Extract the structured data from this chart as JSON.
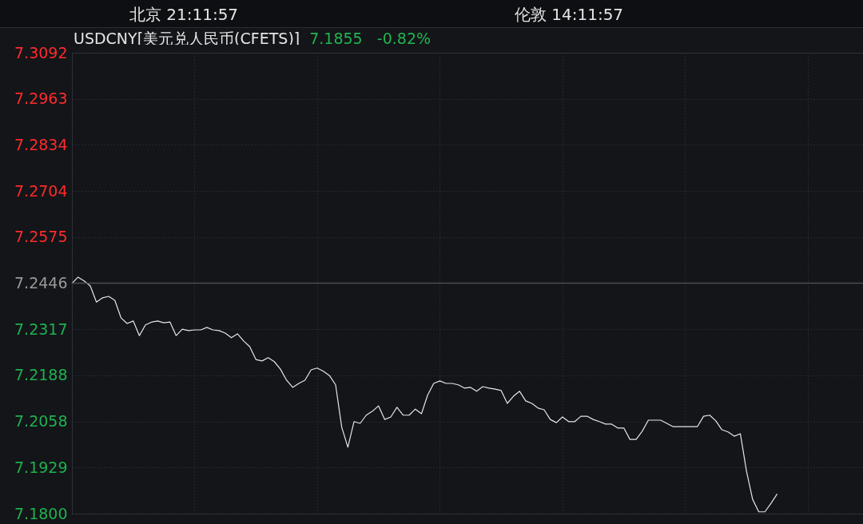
{
  "chart_data": {
    "type": "line",
    "title": "USDCNY[美元兑人民币(CFETS)]",
    "subtitle": "7.1855   -0.82%",
    "annotations": [
      "北京 21:11:57",
      "伦敦 14:11:57"
    ],
    "categories": [
      null,
      null,
      null,
      null,
      null,
      null,
      null,
      null,
      null,
      null,
      null,
      null,
      null,
      null,
      null,
      null,
      null,
      null,
      null,
      null,
      null,
      null,
      null,
      null,
      null,
      null,
      null,
      null,
      null,
      null,
      null,
      null,
      null,
      null,
      null,
      null,
      null,
      null,
      null,
      null,
      null,
      null,
      null,
      null,
      null,
      null,
      null,
      null,
      null,
      null,
      null,
      null,
      null,
      null,
      null,
      null,
      null,
      null,
      null,
      null,
      null,
      null,
      null,
      null,
      null,
      null,
      null,
      null,
      null,
      null,
      null,
      null,
      null,
      null,
      null,
      null,
      null,
      null,
      null,
      null,
      null,
      null,
      null,
      null,
      null,
      null,
      null,
      null,
      null,
      null,
      null,
      null,
      null,
      null,
      null,
      null,
      null,
      null,
      null,
      null,
      null,
      null,
      null,
      null,
      null,
      null,
      null,
      null,
      null,
      null,
      null,
      null,
      null,
      null,
      null,
      null,
      null,
      null,
      null,
      null,
      null,
      null,
      null,
      null,
      null,
      null,
      null,
      null,
      null,
      null
    ],
    "series": [
      {
        "color": "#e6e6e6",
        "values": [
          7.2445,
          7.2463,
          7.2452,
          7.2438,
          7.2393,
          7.2405,
          7.2409,
          7.2398,
          7.2349,
          7.2333,
          7.234,
          7.2299,
          7.2329,
          7.2337,
          7.234,
          7.2335,
          7.2337,
          7.2299,
          7.2317,
          7.2313,
          7.2315,
          7.2315,
          7.2322,
          7.2315,
          7.2313,
          7.2306,
          7.2293,
          7.2304,
          7.2284,
          7.2268,
          7.2232,
          7.2228,
          7.2237,
          7.2226,
          7.2205,
          7.2174,
          7.2154,
          7.2165,
          7.2174,
          7.2203,
          7.2208,
          7.2199,
          7.2187,
          7.2161,
          7.2042,
          7.1986,
          7.2058,
          7.2053,
          7.2076,
          7.2087,
          7.2102,
          7.2064,
          7.2071,
          7.2098,
          7.2076,
          7.2076,
          7.2093,
          7.208,
          7.2132,
          7.2165,
          7.2172,
          7.2165,
          7.2165,
          7.2161,
          7.2152,
          7.2154,
          7.2143,
          7.2156,
          7.2152,
          7.2149,
          7.2145,
          7.2109,
          7.2129,
          7.2143,
          7.2116,
          7.2109,
          7.2096,
          7.2091,
          7.2064,
          7.2055,
          7.2071,
          7.2058,
          7.2058,
          7.2073,
          7.2073,
          7.2064,
          7.2058,
          7.2051,
          7.2051,
          7.204,
          7.204,
          7.2008,
          7.2008,
          7.2031,
          7.2062,
          7.2062,
          7.2062,
          7.2053,
          7.2044,
          7.2044,
          7.2044,
          7.2044,
          7.2044,
          7.2073,
          7.2076,
          7.206,
          7.2035,
          7.2029,
          7.2017,
          7.2024,
          7.1919,
          7.184,
          7.1805,
          7.1805,
          7.1829,
          7.1855,
          null,
          null,
          null,
          null,
          null,
          null,
          null,
          null,
          null,
          null,
          null,
          null,
          null,
          null
        ]
      }
    ],
    "ylim": [
      7.18,
      7.3092
    ],
    "yticks": [
      7.3092,
      7.2963,
      7.2834,
      7.2704,
      7.2575,
      7.2446,
      7.2317,
      7.2188,
      7.2058,
      7.1929,
      {
        "value": 7.18,
        "label": "7.1800"
      }
    ],
    "ref_lines": [
      {
        "axis": "y",
        "value": 7.2446,
        "color": "#4a4d52"
      }
    ],
    "grid": true,
    "tick_labels": "y"
  }
}
